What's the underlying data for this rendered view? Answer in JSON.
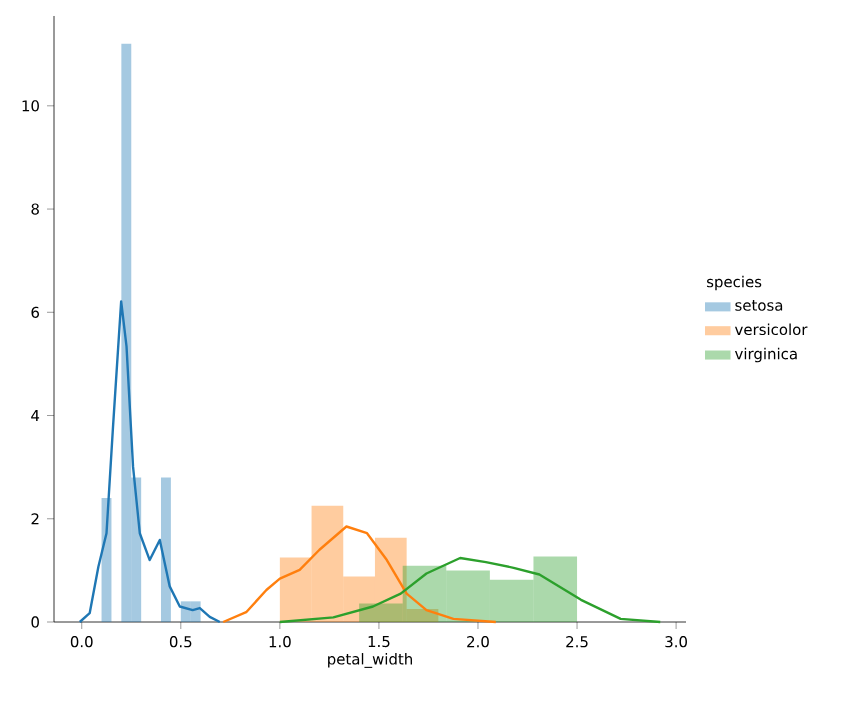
{
  "chart_data": {
    "type": "histogram",
    "xlabel": "petal_width",
    "legend_title": "species",
    "legend": "right",
    "grid": false,
    "xlim": [
      -0.14,
      3.05
    ],
    "ylim": [
      0,
      11.74
    ],
    "xticks": [
      {
        "value": 0,
        "label": "0.0"
      },
      {
        "value": 0.5,
        "label": "0.5"
      },
      {
        "value": 1,
        "label": "1.0"
      },
      {
        "value": 1.5,
        "label": "1.5"
      },
      {
        "value": 2,
        "label": "2.0"
      },
      {
        "value": 2.5,
        "label": "2.5"
      },
      {
        "value": 3,
        "label": "3.0"
      }
    ],
    "yticks": [
      0,
      2,
      4,
      6,
      8,
      10
    ],
    "series": [
      {
        "name": "setosa",
        "color": "#1f77b4",
        "bins": [
          0.1,
          0.15,
          0.2,
          0.25,
          0.3,
          0.35,
          0.4,
          0.45,
          0.5,
          0.55,
          0.6
        ],
        "values": [
          2.4,
          0,
          11.2,
          2.8,
          0,
          0,
          2.8,
          0,
          0.4,
          0.4
        ]
      },
      {
        "name": "versicolor",
        "color": "#ff7f0e",
        "bins": [
          1.0,
          1.16,
          1.32,
          1.48,
          1.64,
          1.8
        ],
        "values": [
          1.25,
          2.25,
          0.88,
          1.63,
          0.25
        ]
      },
      {
        "name": "virginica",
        "color": "#2ca02c",
        "bins": [
          1.4,
          1.62,
          1.84,
          2.06,
          2.28,
          2.5
        ],
        "values": [
          0.36,
          1.09,
          1.0,
          0.82,
          1.27
        ]
      },
      {
        "type": "line",
        "color": "#1f77b4",
        "x": [
          -0.01,
          0.04,
          0.084,
          0.125,
          0.158,
          0.199,
          0.226,
          0.259,
          0.293,
          0.343,
          0.394,
          0.444,
          0.495,
          0.56,
          0.596,
          0.646,
          0.697
        ],
        "values": [
          0,
          0.17,
          1.07,
          1.72,
          3.79,
          6.21,
          5.34,
          3.01,
          1.72,
          1.2,
          1.59,
          0.69,
          0.3,
          0.23,
          0.27,
          0.1,
          0
        ]
      },
      {
        "type": "line",
        "color": "#ff7f0e",
        "x": [
          0.714,
          0.83,
          0.932,
          1.0,
          1.1,
          1.2,
          1.336,
          1.44,
          1.54,
          1.64,
          1.74,
          1.876,
          2.09
        ],
        "values": [
          0,
          0.19,
          0.62,
          0.84,
          1.01,
          1.4,
          1.85,
          1.72,
          1.2,
          0.55,
          0.23,
          0.06,
          0
        ]
      },
      {
        "type": "line",
        "color": "#2ca02c",
        "x": [
          1.0,
          1.27,
          1.47,
          1.61,
          1.74,
          1.91,
          2.04,
          2.18,
          2.31,
          2.52,
          2.72,
          2.92
        ],
        "values": [
          0,
          0.09,
          0.3,
          0.55,
          0.94,
          1.24,
          1.16,
          1.05,
          0.92,
          0.43,
          0.06,
          0
        ]
      }
    ]
  }
}
